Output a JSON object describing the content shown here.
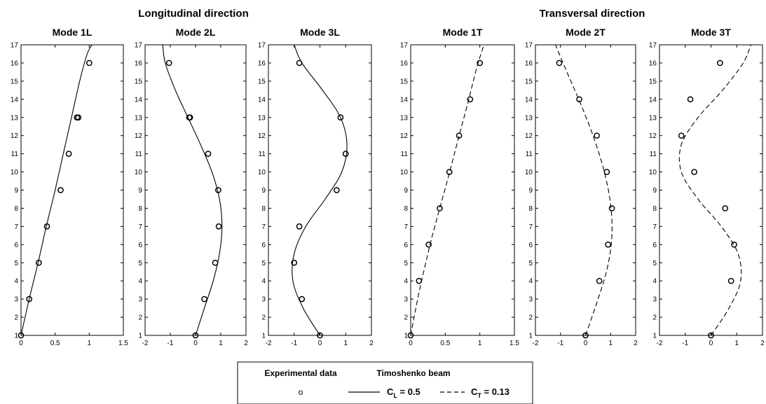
{
  "groups": [
    {
      "title": "Longitudinal direction"
    },
    {
      "title": "Transversal direction"
    }
  ],
  "chart_data": [
    {
      "type": "line",
      "title": "Mode 1L",
      "direction": "longitudinal",
      "xlim": [
        0,
        1.5
      ],
      "ylim": [
        1,
        17
      ],
      "xticks": [
        0,
        0.5,
        1,
        1.5
      ],
      "yticks": [
        1,
        2,
        3,
        4,
        5,
        6,
        7,
        8,
        9,
        10,
        11,
        12,
        13,
        14,
        15,
        16,
        17
      ],
      "series": [
        {
          "name": "Experimental data",
          "style": "marker-circle",
          "x": [
            0,
            0.12,
            0.26,
            0.38,
            0.58,
            0.7,
            0.84,
            0.82,
            1.0
          ],
          "y": [
            1,
            3,
            5,
            7,
            9,
            11,
            13,
            13,
            16
          ]
        },
        {
          "name": "Timoshenko beam",
          "style": "solid",
          "x": [
            0,
            0.12,
            0.25,
            0.37,
            0.5,
            0.62,
            0.74,
            0.86,
            0.97,
            1.04
          ],
          "y": [
            1,
            3,
            5,
            7,
            9,
            11,
            13,
            15,
            16.5,
            17
          ]
        }
      ]
    },
    {
      "type": "line",
      "title": "Mode 2L",
      "direction": "longitudinal",
      "xlim": [
        -2,
        2
      ],
      "ylim": [
        1,
        17
      ],
      "xticks": [
        -2,
        -1,
        0,
        1,
        2
      ],
      "yticks": [
        1,
        2,
        3,
        4,
        5,
        6,
        7,
        8,
        9,
        10,
        11,
        12,
        13,
        14,
        15,
        16,
        17
      ],
      "series": [
        {
          "name": "Experimental data",
          "style": "marker-circle",
          "x": [
            0,
            0.35,
            0.78,
            0.92,
            0.9,
            0.5,
            -0.25,
            -0.22,
            -1.05
          ],
          "y": [
            1,
            3,
            5,
            7,
            9,
            11,
            13,
            13,
            16
          ]
        },
        {
          "name": "Timoshenko beam",
          "style": "solid",
          "x": [
            0,
            0.35,
            0.7,
            0.95,
            1.05,
            0.95,
            0.65,
            0.2,
            -0.3,
            -0.8,
            -1.2,
            -1.3
          ],
          "y": [
            1,
            2.5,
            4,
            5.5,
            7,
            8.5,
            10,
            11.5,
            13,
            14.5,
            16,
            17
          ]
        }
      ]
    },
    {
      "type": "line",
      "title": "Mode 3L",
      "direction": "longitudinal",
      "xlim": [
        -2,
        2
      ],
      "ylim": [
        1,
        17
      ],
      "xticks": [
        -2,
        -1,
        0,
        1,
        2
      ],
      "yticks": [
        1,
        2,
        3,
        4,
        5,
        6,
        7,
        8,
        9,
        10,
        11,
        12,
        13,
        14,
        15,
        16,
        17
      ],
      "series": [
        {
          "name": "Experimental data",
          "style": "marker-circle",
          "x": [
            0,
            -0.7,
            -1.0,
            -0.8,
            0.65,
            1.0,
            0.8,
            -0.8
          ],
          "y": [
            1,
            3,
            5,
            7,
            9,
            11,
            13,
            16
          ]
        },
        {
          "name": "Timoshenko beam",
          "style": "solid",
          "x": [
            0,
            -0.65,
            -1.05,
            -1.0,
            -0.55,
            0.2,
            0.85,
            1.05,
            0.8,
            0.1,
            -0.7,
            -1.0
          ],
          "y": [
            1,
            2.5,
            4,
            5.5,
            7,
            8.5,
            10,
            11.5,
            13,
            14.5,
            16,
            17
          ]
        }
      ]
    },
    {
      "type": "line",
      "title": "Mode 1T",
      "direction": "transversal",
      "xlim": [
        0,
        1.5
      ],
      "ylim": [
        1,
        17
      ],
      "xticks": [
        0,
        0.5,
        1,
        1.5
      ],
      "yticks": [
        1,
        2,
        3,
        4,
        5,
        6,
        7,
        8,
        9,
        10,
        11,
        12,
        13,
        14,
        15,
        16,
        17
      ],
      "series": [
        {
          "name": "Experimental data",
          "style": "marker-circle",
          "x": [
            0,
            0.12,
            0.26,
            0.42,
            0.56,
            0.7,
            0.86,
            1.0
          ],
          "y": [
            1,
            4,
            6,
            8,
            10,
            12,
            14,
            16
          ]
        },
        {
          "name": "Timoshenko beam",
          "style": "dashed",
          "x": [
            0,
            0.1,
            0.2,
            0.3,
            0.42,
            0.55,
            0.68,
            0.82,
            0.96,
            1.06
          ],
          "y": [
            1,
            3,
            4.7,
            6.3,
            8,
            9.8,
            11.7,
            13.7,
            15.8,
            17
          ]
        }
      ]
    },
    {
      "type": "line",
      "title": "Mode 2T",
      "direction": "transversal",
      "xlim": [
        -2,
        2
      ],
      "ylim": [
        1,
        17
      ],
      "xticks": [
        -2,
        -1,
        0,
        1,
        2
      ],
      "yticks": [
        1,
        2,
        3,
        4,
        5,
        6,
        7,
        8,
        9,
        10,
        11,
        12,
        13,
        14,
        15,
        16,
        17
      ],
      "series": [
        {
          "name": "Experimental data",
          "style": "marker-circle",
          "x": [
            0,
            0.55,
            0.9,
            1.05,
            0.85,
            0.45,
            -0.25,
            -1.05
          ],
          "y": [
            1,
            4,
            6,
            8,
            10,
            12,
            14,
            16
          ]
        },
        {
          "name": "Timoshenko beam",
          "style": "dashed",
          "x": [
            0,
            0.45,
            0.85,
            1.05,
            1.0,
            0.75,
            0.35,
            -0.15,
            -0.65,
            -1.05,
            -1.2
          ],
          "y": [
            1,
            2.8,
            4.6,
            6.4,
            8.2,
            10,
            11.8,
            13.6,
            15.2,
            16.5,
            17
          ]
        }
      ]
    },
    {
      "type": "line",
      "title": "Mode 3T",
      "direction": "transversal",
      "xlim": [
        -2,
        2
      ],
      "ylim": [
        1,
        17
      ],
      "xticks": [
        -2,
        -1,
        0,
        1,
        2
      ],
      "yticks": [
        1,
        2,
        3,
        4,
        5,
        6,
        7,
        8,
        9,
        10,
        11,
        12,
        13,
        14,
        15,
        16,
        17
      ],
      "series": [
        {
          "name": "Experimental data",
          "style": "marker-circle",
          "x": [
            0,
            0.78,
            0.9,
            0.55,
            -0.65,
            -1.15,
            -0.8,
            0.35
          ],
          "y": [
            1,
            4,
            6,
            8,
            10,
            12,
            14,
            16
          ]
        },
        {
          "name": "Timoshenko beam",
          "style": "dashed",
          "x": [
            0,
            0.7,
            1.15,
            1.05,
            0.4,
            -0.5,
            -1.15,
            -1.15,
            -0.5,
            0.45,
            1.25,
            1.55
          ],
          "y": [
            1,
            2.5,
            4,
            5.5,
            7,
            8.5,
            10,
            11.5,
            13,
            14.5,
            16,
            17
          ]
        }
      ]
    }
  ],
  "legend": {
    "experimental_heading": "Experimental data",
    "timoshenko_heading": "Timoshenko beam",
    "marker_glyph": "o",
    "solid_label_var": "C",
    "solid_label_sub": "L",
    "solid_label_value": " = 0.5",
    "dashed_label_var": "C",
    "dashed_label_sub": "T",
    "dashed_label_value": " = 0.13"
  }
}
